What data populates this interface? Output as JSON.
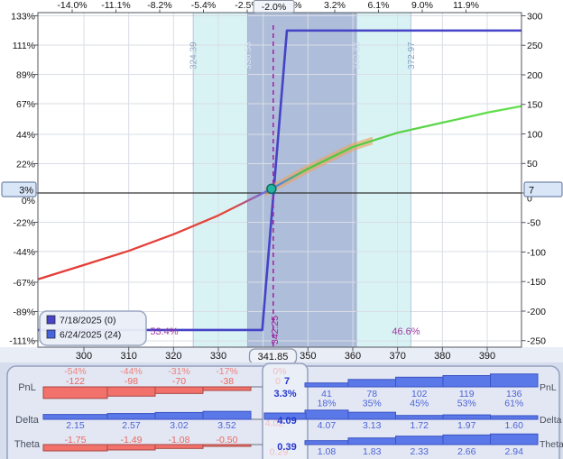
{
  "chart": {
    "legend": {
      "items": [
        {
          "label": "7/18/2025 (0)",
          "color": "#4845c8"
        },
        {
          "label": "6/24/2025 (24)",
          "color": "#4664dc"
        }
      ]
    },
    "axes": {
      "top_percent_ticks": [
        "-14.0%",
        "-11.1%",
        "-8.2%",
        "-5.4%",
        "-2.5%",
        "0.4%",
        "3.2%",
        "6.1%",
        "9.0%",
        "11.9%"
      ],
      "top_current_box": "-2.0%",
      "left_percent_ticks": [
        "133%",
        "111%",
        "89%",
        "67%",
        "44%",
        "22%",
        "0%",
        "-22%",
        "-44%",
        "-67%",
        "-89%",
        "-111%"
      ],
      "left_current_box": "3%",
      "right_value_ticks": [
        "300",
        "250",
        "200",
        "150",
        "100",
        "50",
        "0",
        "-50",
        "-100",
        "-150",
        "-200",
        "-250"
      ],
      "right_current_box": "7",
      "bottom_price_ticks": [
        "300",
        "310",
        "320",
        "330",
        "350",
        "360",
        "370",
        "380",
        "390"
      ],
      "bottom_current_box": "341.85"
    },
    "annotations": {
      "prob_below": "53.4%",
      "prob_above": "46.6%",
      "breakeven_label": "342.25",
      "range_labels": [
        "324.39",
        "336.53",
        "360.83",
        "372.97"
      ]
    },
    "chart_data": {
      "type": "line",
      "x_axis": "underlying price",
      "x_range": [
        289.8,
        397.6
      ],
      "y_right_range": [
        -250,
        300
      ],
      "y_left_range_percent": [
        -111,
        133
      ],
      "grid": true,
      "price_ticks": [
        300,
        310,
        320,
        330,
        350,
        360,
        370,
        380,
        390
      ],
      "current_price": 341.85,
      "breakeven_price": 342.25,
      "expected_move_inner": [
        336.53,
        360.83
      ],
      "expected_move_outer": [
        324.39,
        372.97
      ],
      "probability_below": "53.4%",
      "probability_above": "46.6%",
      "series": [
        {
          "name": "7/18/2025 (0)",
          "style": "expiration-step",
          "color": "#4543c6",
          "points": [
            [
              289.8,
              -232
            ],
            [
              339.8,
              -232
            ],
            [
              345.3,
              275
            ],
            [
              397.6,
              275
            ]
          ]
        },
        {
          "name": "6/24/2025 (24)",
          "style": "t0-gradient-red-blue-green",
          "points": [
            [
              289.8,
              -146
            ],
            [
              300,
              -122
            ],
            [
              310,
              -98
            ],
            [
              320,
              -70
            ],
            [
              330,
              -38
            ],
            [
              341.85,
              7
            ],
            [
              350,
              41
            ],
            [
              360,
              78
            ],
            [
              370,
              102
            ],
            [
              380,
              119
            ],
            [
              390,
              136
            ],
            [
              397.6,
              147
            ]
          ]
        }
      ],
      "marker": {
        "price": 341.85,
        "pnl": 7,
        "color": "#27b5a3"
      }
    }
  },
  "table": {
    "row_labels": [
      "PnL",
      "Delta",
      "Theta"
    ],
    "pnl": {
      "left_pct": [
        "-54%",
        "-44%",
        "-31%",
        "-17%"
      ],
      "left_values": [
        "-122",
        "-98",
        "-70",
        "-38"
      ],
      "center_value": "7",
      "center_pct": "3.3%",
      "center_ghost_value": "0",
      "center_ghost_pct": "0%",
      "right_values": [
        "41",
        "78",
        "102",
        "119",
        "136"
      ],
      "right_pct": [
        "18%",
        "35%",
        "45%",
        "53%",
        "61%"
      ]
    },
    "delta": {
      "left_values": [
        "2.15",
        "2.57",
        "3.02",
        "3.52"
      ],
      "center_value": "4.09",
      "center_ghost": "4.02",
      "right_values": [
        "4.07",
        "3.13",
        "1.72",
        "1.97",
        "1.60"
      ]
    },
    "theta": {
      "left_values": [
        "-1.75",
        "-1.49",
        "-1.08",
        "-0.50"
      ],
      "center_value": "0.39",
      "center_ghost": "0.29",
      "right_values": [
        "1.08",
        "1.83",
        "2.33",
        "2.66",
        "2.94"
      ]
    }
  },
  "colors": {
    "negative": "#ec6660",
    "positive": "#4d63d9",
    "accent_purple": "#a03aa0",
    "band_cyan": "#d9f3f4",
    "band_dark": "#a9b7d6",
    "expiration_line": "#4543c6",
    "teal_marker": "#27b5a3",
    "highlight_orange": "#eda25e"
  }
}
